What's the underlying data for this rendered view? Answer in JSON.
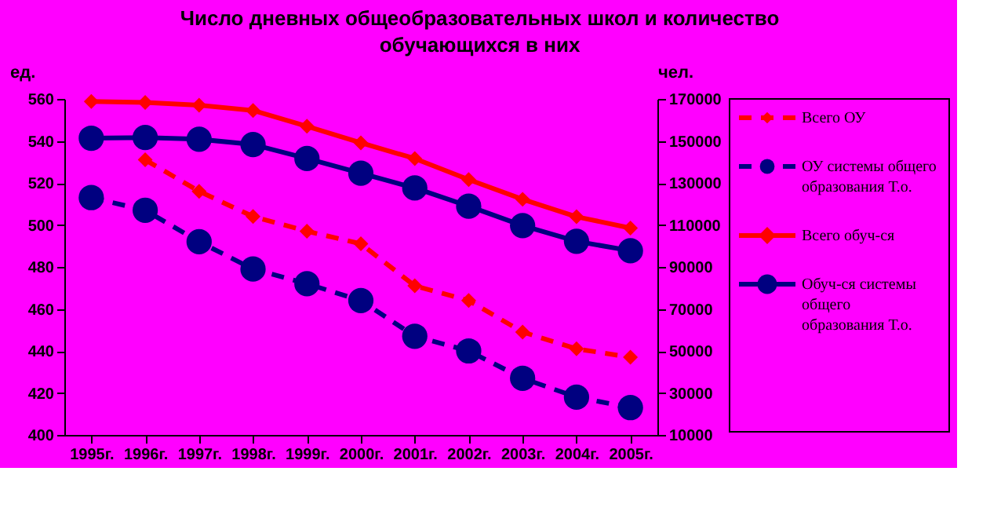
{
  "chart_data": {
    "type": "line",
    "title": "Число дневных общеобразовательных школ и количество обучающихся в них",
    "ylabel": "ед.",
    "y2label": "чел.",
    "categories": [
      "1995г.",
      "1996г.",
      "1997г.",
      "1998г.",
      "1999г.",
      "2000г.",
      "2001г.",
      "2002г.",
      "2003г.",
      "2004г.",
      "2005г."
    ],
    "ylim": [
      400,
      560
    ],
    "yticks": [
      400,
      420,
      440,
      460,
      480,
      500,
      520,
      540,
      560
    ],
    "y2lim": [
      10000,
      170000
    ],
    "y2ticks": [
      10000,
      30000,
      50000,
      70000,
      90000,
      110000,
      130000,
      150000,
      170000
    ],
    "legend": "right",
    "grid": false,
    "series": [
      {
        "name": "Всего ОУ",
        "color": "#ff0000",
        "marker": "diamond",
        "line_style": "dashed",
        "values": [
          null,
          531,
          516,
          504,
          497,
          491,
          471,
          464,
          449,
          441,
          437
        ]
      },
      {
        "name": "ОУ системы общего образования Т.о.",
        "color": "#000080",
        "marker": "circle",
        "line_style": "dashed",
        "values": [
          513,
          507,
          492,
          479,
          472,
          464,
          447,
          440,
          427,
          418,
          413
        ]
      },
      {
        "name": "Всего обуч-ся",
        "color": "#ff0000",
        "marker": "diamond",
        "line_style": "solid",
        "axis": "y2",
        "values": [
          168800,
          168300,
          167000,
          164500,
          157000,
          149100,
          141600,
          131600,
          122200,
          113900,
          108500
        ]
      },
      {
        "name": "Обуч-ся системы общего образования Т.о.",
        "color": "#000080",
        "marker": "circle",
        "line_style": "solid",
        "axis": "y2",
        "values": [
          151300,
          151600,
          150800,
          148300,
          141600,
          134600,
          127600,
          118900,
          109700,
          102200,
          97700
        ]
      }
    ]
  }
}
